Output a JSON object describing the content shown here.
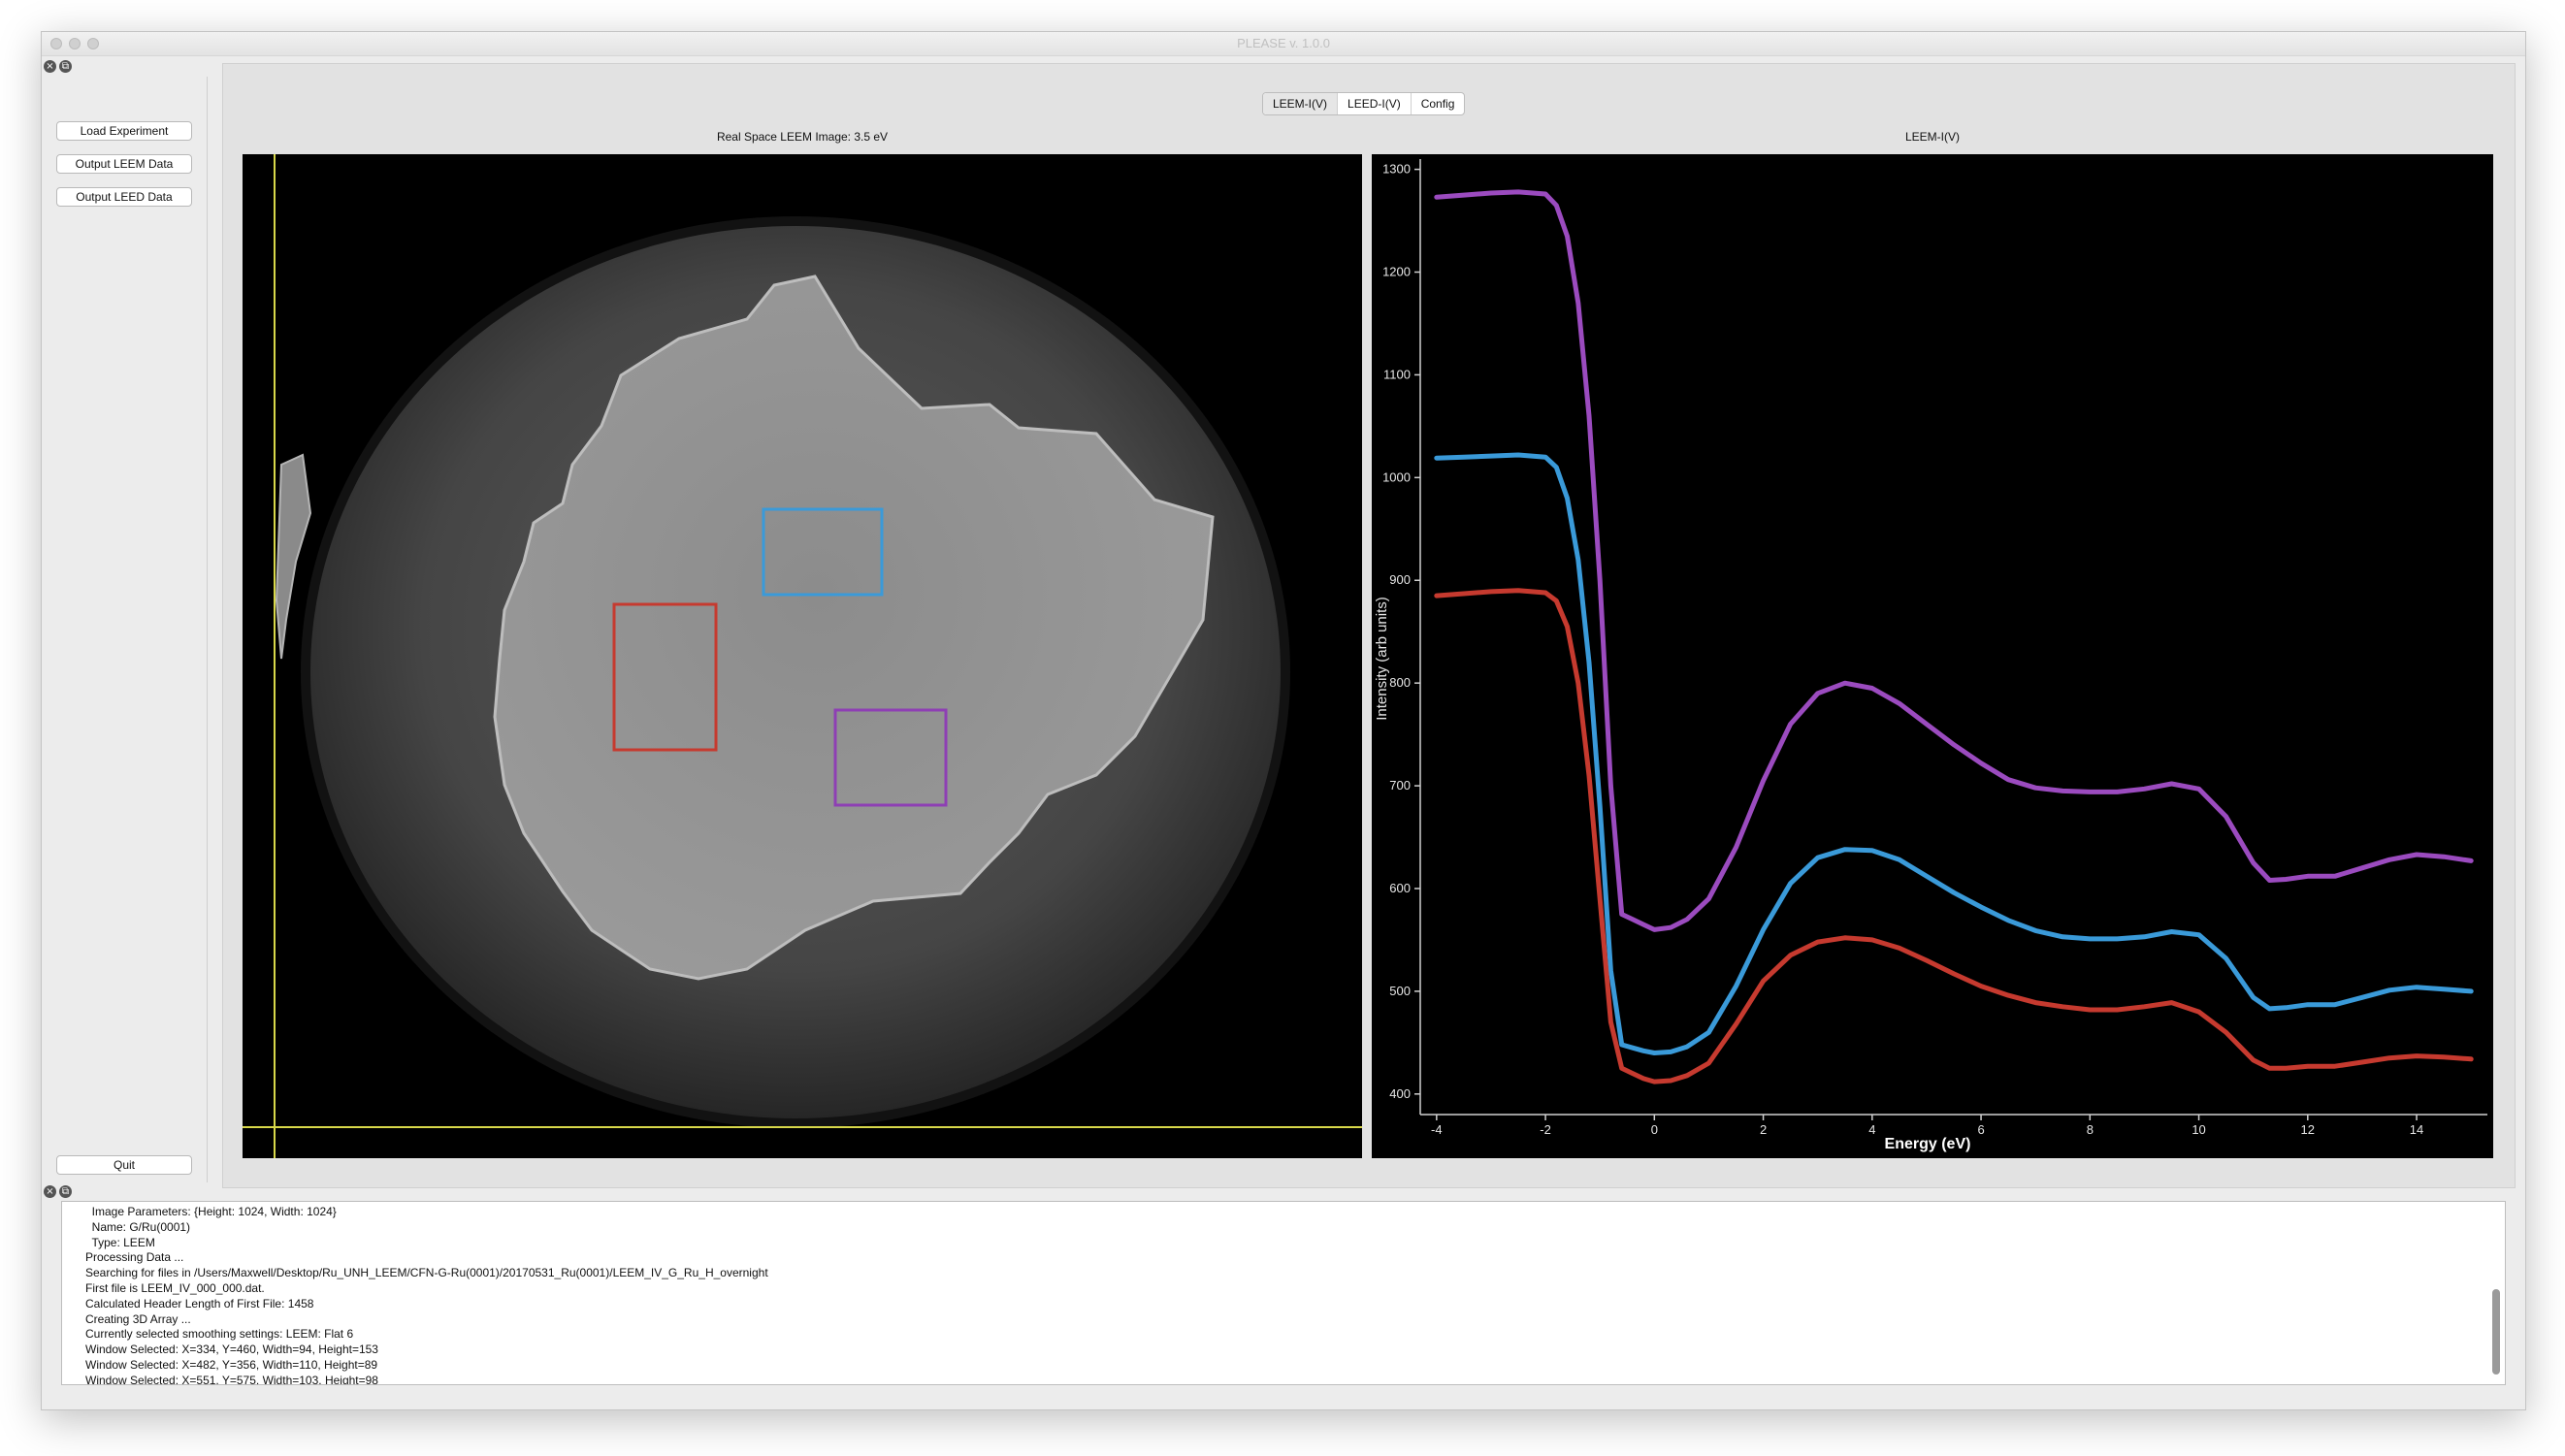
{
  "window": {
    "title": "PLEASE v. 1.0.0"
  },
  "sidebar": {
    "load_label": "Load Experiment",
    "output_leem_label": "Output LEEM Data",
    "output_leed_label": "Output LEED Data",
    "quit_label": "Quit"
  },
  "tabs": [
    {
      "label": "LEEM-I(V)",
      "active": true
    },
    {
      "label": "LEED-I(V)",
      "active": false
    },
    {
      "label": "Config",
      "active": false
    }
  ],
  "image_panel": {
    "title": "Real Space LEEM Image: 3.5 eV",
    "colors": {
      "blue_box": "#3a9ad9",
      "red_box": "#c63a2f",
      "purple_box": "#8e3fb4",
      "crosshair": "#d8d84a"
    }
  },
  "chart_data": {
    "type": "line",
    "title": "LEEM-I(V)",
    "xlabel": "Energy (eV)",
    "ylabel": "Intensity (arb units)",
    "xlim": [
      -4.3,
      15.3
    ],
    "ylim": [
      380,
      1310
    ],
    "xticks": [
      "-4",
      "-2",
      "0",
      "2",
      "4",
      "6",
      "8",
      "10",
      "12",
      "14"
    ],
    "yticks": [
      "400",
      "500",
      "600",
      "700",
      "800",
      "900",
      "1000",
      "1100",
      "1200",
      "1300"
    ],
    "background": "#000000",
    "series": [
      {
        "name": "purple",
        "color": "#9b4bbf",
        "x": [
          -4,
          -3.5,
          -3,
          -2.5,
          -2,
          -1.8,
          -1.6,
          -1.4,
          -1.2,
          -1.0,
          -0.8,
          -0.6,
          -0.4,
          -0.2,
          0,
          0.3,
          0.6,
          1.0,
          1.5,
          2.0,
          2.5,
          3.0,
          3.5,
          4.0,
          4.5,
          5.0,
          5.5,
          6.0,
          6.5,
          7.0,
          7.5,
          8.0,
          8.5,
          9.0,
          9.5,
          10.0,
          10.5,
          11.0,
          11.3,
          11.6,
          12.0,
          12.5,
          13.0,
          13.5,
          14.0,
          14.5,
          15.0
        ],
        "values": [
          1273,
          1275,
          1277,
          1278,
          1276,
          1265,
          1235,
          1170,
          1060,
          900,
          700,
          575,
          570,
          565,
          560,
          562,
          570,
          590,
          640,
          705,
          760,
          790,
          800,
          795,
          780,
          760,
          740,
          722,
          706,
          698,
          695,
          694,
          694,
          697,
          702,
          697,
          670,
          625,
          608,
          609,
          612,
          612,
          620,
          628,
          633,
          631,
          627
        ]
      },
      {
        "name": "blue",
        "color": "#3a9ad9",
        "x": [
          -4,
          -3.5,
          -3,
          -2.5,
          -2,
          -1.8,
          -1.6,
          -1.4,
          -1.2,
          -1.0,
          -0.8,
          -0.6,
          -0.4,
          -0.2,
          0,
          0.3,
          0.6,
          1.0,
          1.5,
          2.0,
          2.5,
          3.0,
          3.5,
          4.0,
          4.5,
          5.0,
          5.5,
          6.0,
          6.5,
          7.0,
          7.5,
          8.0,
          8.5,
          9.0,
          9.5,
          10.0,
          10.5,
          11.0,
          11.3,
          11.6,
          12.0,
          12.5,
          13.0,
          13.5,
          14.0,
          14.5,
          15.0
        ],
        "values": [
          1019,
          1020,
          1021,
          1022,
          1020,
          1010,
          980,
          920,
          820,
          680,
          520,
          448,
          445,
          442,
          440,
          441,
          446,
          460,
          505,
          560,
          605,
          630,
          638,
          637,
          628,
          612,
          596,
          582,
          569,
          559,
          553,
          551,
          551,
          553,
          558,
          555,
          532,
          494,
          483,
          484,
          487,
          487,
          494,
          501,
          504,
          502,
          500
        ]
      },
      {
        "name": "red",
        "color": "#c63a2f",
        "x": [
          -4,
          -3.5,
          -3,
          -2.5,
          -2,
          -1.8,
          -1.6,
          -1.4,
          -1.2,
          -1.0,
          -0.8,
          -0.6,
          -0.4,
          -0.2,
          0,
          0.3,
          0.6,
          1.0,
          1.5,
          2.0,
          2.5,
          3.0,
          3.5,
          4.0,
          4.5,
          5.0,
          5.5,
          6.0,
          6.5,
          7.0,
          7.5,
          8.0,
          8.5,
          9.0,
          9.5,
          10.0,
          10.5,
          11.0,
          11.3,
          11.6,
          12.0,
          12.5,
          13.0,
          13.5,
          14.0,
          14.5,
          15.0
        ],
        "values": [
          885,
          887,
          889,
          890,
          888,
          880,
          855,
          800,
          710,
          590,
          470,
          425,
          420,
          415,
          412,
          413,
          418,
          430,
          468,
          510,
          535,
          548,
          552,
          550,
          542,
          530,
          517,
          505,
          496,
          489,
          485,
          482,
          482,
          485,
          489,
          480,
          460,
          433,
          425,
          425,
          427,
          427,
          431,
          435,
          437,
          436,
          434
        ]
      }
    ]
  },
  "console": {
    "lines": [
      "  Image Parameters: {Height: 1024, Width: 1024}",
      "  Name: G/Ru(0001)",
      "  Type: LEEM",
      "Processing Data ...",
      "Searching for files in /Users/Maxwell/Desktop/Ru_UNH_LEEM/CFN-G-Ru(0001)/20170531_Ru(0001)/LEEM_IV_G_Ru_H_overnight",
      "First file is LEEM_IV_000_000.dat.",
      "Calculated Header Length of First File: 1458",
      "Creating 3D Array ...",
      "Currently selected smoothing settings: LEEM: Flat 6",
      "Window Selected: X=334, Y=460, Width=94, Height=153",
      "Window Selected: X=482, Y=356, Width=110, Height=89",
      "Window Selected: X=551, Y=575, Width=103, Height=98"
    ]
  }
}
